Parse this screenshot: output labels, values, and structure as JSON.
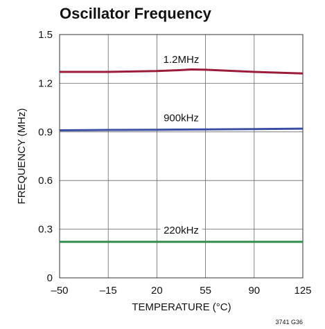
{
  "chart_data": {
    "type": "line",
    "title": "Oscillator Frequency",
    "xlabel": "TEMPERATURE (°C)",
    "ylabel": "FREQUENCY (MHz)",
    "xlim": [
      -50,
      125
    ],
    "ylim": [
      0,
      1.5
    ],
    "x_ticks": [
      -50,
      -15,
      20,
      55,
      90,
      125
    ],
    "x_tick_labels": [
      "–50",
      "–15",
      "20",
      "55",
      "90",
      "125"
    ],
    "y_ticks": [
      0,
      0.3,
      0.6,
      0.9,
      1.2,
      1.5
    ],
    "y_tick_labels": [
      "0",
      "0.3",
      "0.6",
      "0.9",
      "1.2",
      "1.5"
    ],
    "grid": true,
    "series": [
      {
        "name": "1.2MHz",
        "color": "#9b1b3a",
        "x": [
          -50,
          -15,
          20,
          35,
          45,
          55,
          90,
          125
        ],
        "y": [
          1.27,
          1.27,
          1.275,
          1.28,
          1.285,
          1.283,
          1.27,
          1.26
        ]
      },
      {
        "name": "900kHz",
        "color": "#3a4fa2",
        "x": [
          -50,
          -15,
          20,
          55,
          90,
          125
        ],
        "y": [
          0.91,
          0.912,
          0.913,
          0.915,
          0.917,
          0.92
        ]
      },
      {
        "name": "220kHz",
        "color": "#2e8b4a",
        "x": [
          -50,
          -15,
          20,
          55,
          90,
          125
        ],
        "y": [
          0.222,
          0.222,
          0.222,
          0.222,
          0.222,
          0.222
        ]
      }
    ],
    "figure_id": "3741 G36"
  }
}
